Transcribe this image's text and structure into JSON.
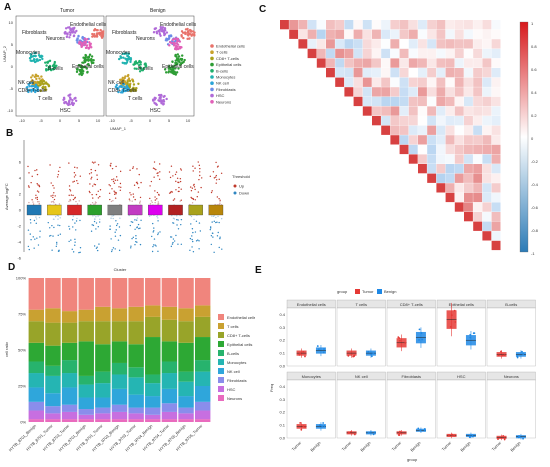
{
  "panels": {
    "A": "A",
    "B": "B",
    "C": "C",
    "D": "D",
    "E": "E"
  },
  "umap": {
    "titles": [
      "Tumor",
      "Benign"
    ],
    "xlabel": "UMAP_1",
    "ylabel": "UMAP_2",
    "xticks": [
      "-10",
      "-5",
      "0",
      "5",
      "10"
    ],
    "yticks": [
      "10",
      "5",
      "0",
      "-5",
      "-10"
    ],
    "cluster_labels": [
      "Fibroblasts",
      "Endothelial cells",
      "Neurons",
      "Monocytes",
      "B-cells",
      "Epithelial cells",
      "NK cell",
      "CD8+ T-cells",
      "T cells",
      "HSC"
    ],
    "legend": [
      {
        "name": "Endothelial cells",
        "color": "#E8726A"
      },
      {
        "name": "T cells",
        "color": "#C8A22C"
      },
      {
        "name": "CD8+ T-cells",
        "color": "#A9A21C"
      },
      {
        "name": "Epithelial cells",
        "color": "#2E9D35"
      },
      {
        "name": "B-cells",
        "color": "#1FB06C"
      },
      {
        "name": "Monocytes",
        "color": "#21B3B0"
      },
      {
        "name": "NK cell",
        "color": "#2AA4D8"
      },
      {
        "name": "Fibroblasts",
        "color": "#6C8CE8"
      },
      {
        "name": "HSC",
        "color": "#B06BD8"
      },
      {
        "name": "Neurons",
        "color": "#E160B8"
      }
    ]
  },
  "volcano": {
    "ylabel": "Average logFC",
    "yticks": [
      "6",
      "4",
      "2",
      "0",
      "-2",
      "-4",
      "-6"
    ],
    "legend_title": "Threshold",
    "legend_items": [
      "Up",
      "Down"
    ],
    "boxes": [
      "#1f78b4",
      "#e6c619",
      "#d62728",
      "#2ca02c",
      "#7f7f7f",
      "#c23cc2",
      "#d0e",
      "#b22222",
      "#a9a21c",
      "#b8860b"
    ]
  },
  "corr": {
    "scale_ticks": [
      "1",
      "0.8",
      "0.6",
      "0.4",
      "0.2",
      "0",
      "-0.2",
      "-0.4",
      "-0.6",
      "-0.8",
      "-1"
    ]
  },
  "stacked": {
    "title": "Cluster",
    "ylabel": "cell ratio",
    "yticks": [
      "100%",
      "75%",
      "50%",
      "25%",
      "0%"
    ],
    "samples": [
      "HYTB_8701_Benign",
      "HYTB_8701_Tumor",
      "HYTB_8703_Tumor",
      "HYTB_9701_Benign",
      "HYTB_9701_Tumor",
      "HYTB_9703_Benign",
      "HYTB_9703_Tumor",
      "HYTB_9704_Benign",
      "HYTB_9704_Tumor",
      "HYTB_9705_Benign",
      "HYTB_9705_Tumor"
    ],
    "legend": [
      "Endothelial cells",
      "T cells",
      "CD8+ T-cells",
      "Epithelial cells",
      "B-cells",
      "Monocytes",
      "NK cell",
      "Fibroblasts",
      "HSC",
      "Neurons"
    ],
    "colors": [
      "#F0857D",
      "#C9A131",
      "#98A429",
      "#2DA834",
      "#27B36D",
      "#25B5B3",
      "#2FA6DB",
      "#8A8DEB",
      "#C76FE0",
      "#E96BBE"
    ]
  },
  "chart_data": {
    "type": "bar",
    "title": "Cluster",
    "ylabel": "cell ratio",
    "categories": [
      "HYTB_8701_Benign",
      "HYTB_8701_Tumor",
      "HYTB_8703_Tumor",
      "HYTB_9701_Benign",
      "HYTB_9701_Tumor",
      "HYTB_9703_Benign",
      "HYTB_9703_Tumor",
      "HYTB_9704_Benign",
      "HYTB_9704_Tumor",
      "HYTB_9705_Benign",
      "HYTB_9705_Tumor"
    ],
    "stacked": true,
    "ylim": [
      0,
      100
    ],
    "series": [
      {
        "name": "Neurons",
        "values": [
          2,
          2,
          2,
          2,
          2,
          2,
          2,
          2,
          2,
          2,
          2
        ]
      },
      {
        "name": "HSC",
        "values": [
          6,
          4,
          5,
          3,
          4,
          5,
          4,
          3,
          5,
          4,
          6
        ]
      },
      {
        "name": "Fibroblasts",
        "values": [
          6,
          5,
          5,
          4,
          4,
          5,
          4,
          5,
          6,
          4,
          6
        ]
      },
      {
        "name": "NK cell",
        "values": [
          10,
          9,
          12,
          8,
          7,
          11,
          9,
          8,
          10,
          8,
          11
        ]
      },
      {
        "name": "Monocytes",
        "values": [
          10,
          12,
          10,
          9,
          10,
          10,
          12,
          9,
          11,
          10,
          10
        ]
      },
      {
        "name": "B-cells",
        "values": [
          8,
          7,
          9,
          6,
          8,
          8,
          7,
          6,
          8,
          7,
          8
        ]
      },
      {
        "name": "Epithelial cells",
        "values": [
          13,
          14,
          12,
          24,
          19,
          15,
          16,
          26,
          14,
          20,
          16
        ]
      },
      {
        "name": "CD8+ T-cells",
        "values": [
          15,
          16,
          14,
          14,
          16,
          14,
          16,
          14,
          15,
          15,
          14
        ]
      },
      {
        "name": "T cells",
        "values": [
          8,
          10,
          8,
          8,
          10,
          9,
          10,
          8,
          9,
          9,
          8
        ]
      },
      {
        "name": "Endothelial cells",
        "values": [
          22,
          21,
          23,
          22,
          20,
          21,
          20,
          19,
          20,
          21,
          19
        ]
      }
    ]
  },
  "boxplot": {
    "legend_title": "group",
    "groups": [
      "Tumor",
      "Benign"
    ],
    "group_colors": [
      "#E53935",
      "#1E88E5"
    ],
    "ylabel": "Freq",
    "xlabel": "group",
    "yticks": [
      "0.4",
      "0.3",
      "0.2",
      "0.1",
      "0.0"
    ],
    "facets": [
      {
        "name": "Endothelial cells",
        "tumor": 0.1,
        "benign": 0.12
      },
      {
        "name": "T cells",
        "tumor": 0.1,
        "benign": 0.1
      },
      {
        "name": "CD8+ T-cells",
        "tumor": 0.18,
        "benign": 0.22
      },
      {
        "name": "Epithelial cells",
        "tumor": 0.36,
        "benign": 0.2
      },
      {
        "name": "B-cells",
        "tumor": 0.09,
        "benign": 0.09
      },
      {
        "name": "Monocytes",
        "tumor": 0.09,
        "benign": 0.09
      },
      {
        "name": "NK cell",
        "tumor": 0.04,
        "benign": 0.04
      },
      {
        "name": "Fibroblasts",
        "tumor": 0.04,
        "benign": 0.06
      },
      {
        "name": "HSC",
        "tumor": 0.02,
        "benign": 0.02
      },
      {
        "name": "Neurons",
        "tumor": 0.005,
        "benign": 0.01
      }
    ]
  }
}
